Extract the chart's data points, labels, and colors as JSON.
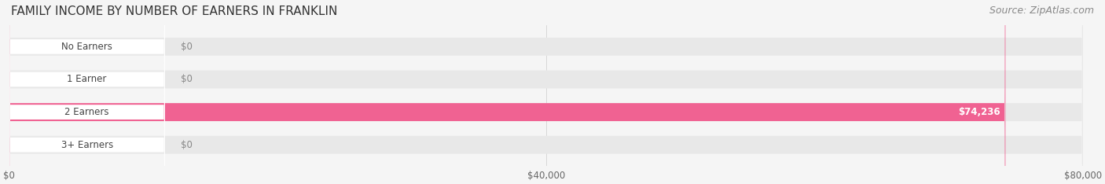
{
  "title": "FAMILY INCOME BY NUMBER OF EARNERS IN FRANKLIN",
  "source": "Source: ZipAtlas.com",
  "categories": [
    "No Earners",
    "1 Earner",
    "2 Earners",
    "3+ Earners"
  ],
  "values": [
    0,
    0,
    74236,
    0
  ],
  "bar_colors": [
    "#5BC8C8",
    "#A9A9D4",
    "#F06292",
    "#F5C98A"
  ],
  "label_colors": [
    "#5BC8C8",
    "#A9A9D4",
    "#F06292",
    "#F5C98A"
  ],
  "value_labels": [
    "$0",
    "$0",
    "$74,236",
    "$0"
  ],
  "xlim": [
    0,
    80000
  ],
  "xticks": [
    0,
    40000,
    80000
  ],
  "xtick_labels": [
    "$0",
    "$40,000",
    "$80,000"
  ],
  "background_color": "#f5f5f5",
  "bar_background_color": "#e8e8e8",
  "title_fontsize": 11,
  "source_fontsize": 9,
  "bar_height": 0.55,
  "figsize": [
    14.06,
    2.34
  ],
  "dpi": 100
}
